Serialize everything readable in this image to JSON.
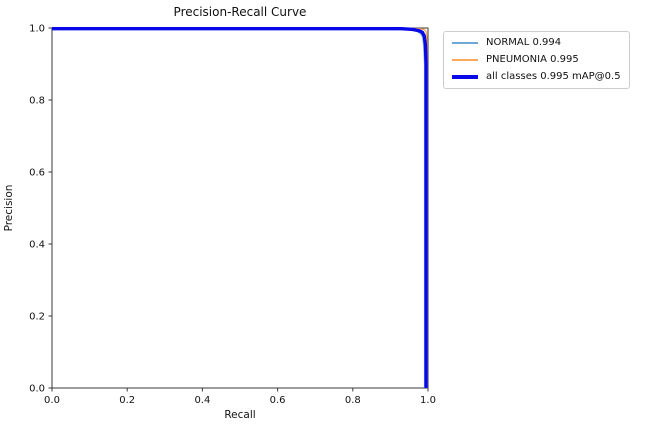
{
  "chart_data": {
    "type": "line",
    "title": "Precision-Recall Curve",
    "xlabel": "Recall",
    "ylabel": "Precision",
    "xlim": [
      0.0,
      1.0
    ],
    "ylim": [
      0.0,
      1.0
    ],
    "xticks": [
      "0.0",
      "0.2",
      "0.4",
      "0.6",
      "0.8",
      "1.0"
    ],
    "yticks": [
      "0.0",
      "0.2",
      "0.4",
      "0.6",
      "0.8",
      "1.0"
    ],
    "grid": false,
    "legend_position": "outside-upper-right",
    "axis_color": "#3a3a3a",
    "text_color": "#111111",
    "series": [
      {
        "name": "NORMAL 0.994",
        "color": "#6fa8d6",
        "linewidth": 1.4,
        "points": [
          [
            0.0,
            0.997
          ],
          [
            0.9,
            0.997
          ],
          [
            0.95,
            0.995
          ],
          [
            0.97,
            0.991
          ],
          [
            0.98,
            0.985
          ],
          [
            0.986,
            0.975
          ],
          [
            0.989,
            0.95
          ],
          [
            0.991,
            0.9
          ],
          [
            0.991,
            0.0
          ]
        ]
      },
      {
        "name": "PNEUMONIA 0.995",
        "color": "#ffa85c",
        "linewidth": 1.4,
        "points": [
          [
            0.0,
            0.999
          ],
          [
            0.95,
            0.999
          ],
          [
            0.975,
            0.998
          ],
          [
            0.99,
            0.996
          ],
          [
            0.995,
            0.99
          ],
          [
            0.997,
            0.97
          ],
          [
            0.998,
            0.9
          ],
          [
            0.998,
            0.0
          ]
        ]
      },
      {
        "name": "all classes 0.995 mAP@0.5",
        "color": "#0808e8",
        "linewidth": 3.4,
        "points": [
          [
            0.0,
            0.998
          ],
          [
            0.93,
            0.998
          ],
          [
            0.96,
            0.996
          ],
          [
            0.975,
            0.993
          ],
          [
            0.985,
            0.988
          ],
          [
            0.99,
            0.978
          ],
          [
            0.993,
            0.955
          ],
          [
            0.995,
            0.9
          ],
          [
            0.995,
            0.0
          ]
        ]
      }
    ]
  }
}
